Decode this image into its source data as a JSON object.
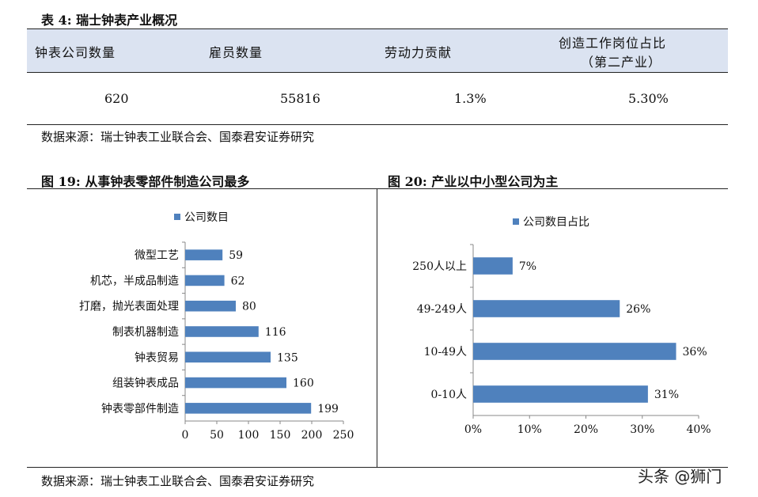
{
  "table": {
    "title": "表 4: 瑞士钟表产业概况",
    "headers": [
      "钟表公司数量",
      "雇员数量",
      "劳动力贡献",
      "创造工作岗位占比",
      "（第二产业）"
    ],
    "row": [
      "620",
      "55816",
      "1.3%",
      "5.30%"
    ]
  },
  "source_top": "数据来源：瑞士钟表工业联合会、国泰君安证券研究",
  "source_bottom": "数据来源：瑞士钟表工业联合会、国泰君安证券研究",
  "fig19": {
    "title": "图 19: 从事钟表零部件制造公司最多"
  },
  "fig20": {
    "title": "图 20: 产业以中小型公司为主"
  },
  "watermark": "头条 @狮门",
  "colors": {
    "bar": "#4f81bd",
    "header_bg": "#dbe3f1"
  },
  "chart_data": [
    {
      "type": "bar",
      "orientation": "horizontal",
      "categories": [
        "微型工艺",
        "机芯，半成品制造",
        "打磨，抛光表面处理",
        "制表机器制造",
        "钟表贸易",
        "组装钟表成品",
        "钟表零部件制造"
      ],
      "series": [
        {
          "name": "公司数目",
          "values": [
            59,
            62,
            80,
            116,
            135,
            160,
            199
          ]
        }
      ],
      "data_labels": [
        "59",
        "62",
        "80",
        "116",
        "135",
        "160",
        "199"
      ],
      "xlim": [
        0,
        250
      ],
      "xticks": [
        "0",
        "50",
        "100",
        "150",
        "200",
        "250"
      ],
      "legend": "top-left",
      "grid": false
    },
    {
      "type": "bar",
      "orientation": "horizontal",
      "categories": [
        "250人以上",
        "49-249人",
        "10-49人",
        "0-10人"
      ],
      "series": [
        {
          "name": "公司数目占比",
          "values": [
            7,
            26,
            36,
            31
          ]
        }
      ],
      "data_labels": [
        "7%",
        "26%",
        "36%",
        "31%"
      ],
      "xlim": [
        0,
        40
      ],
      "xticks": [
        "0%",
        "10%",
        "20%",
        "30%",
        "40%"
      ],
      "legend": "top-left",
      "grid": false
    }
  ]
}
